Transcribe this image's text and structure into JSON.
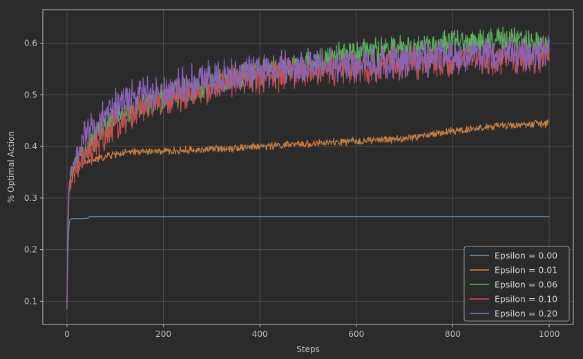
{
  "chart_data": {
    "type": "line",
    "title": "",
    "xlabel": "Steps",
    "ylabel": "% Optimal Action",
    "xlim": [
      -50,
      1050
    ],
    "ylim": [
      0.055,
      0.665
    ],
    "xticks": [
      0,
      200,
      400,
      600,
      800,
      1000
    ],
    "yticks": [
      0.1,
      0.2,
      0.3,
      0.4,
      0.5,
      0.6
    ],
    "xtick_labels": [
      "0",
      "200",
      "400",
      "600",
      "800",
      "1000"
    ],
    "ytick_labels": [
      "0.1",
      "0.2",
      "0.3",
      "0.4",
      "0.5",
      "0.6"
    ],
    "grid": true,
    "legend_position": "bottom-right",
    "series": [
      {
        "name": "Epsilon = 0.00",
        "color": "#5b89ad",
        "noise": 0.0,
        "x": [
          0,
          2,
          4,
          6,
          10,
          20,
          30,
          44,
          46,
          100,
          1000
        ],
        "y": [
          0.1,
          0.19,
          0.245,
          0.258,
          0.26,
          0.26,
          0.26,
          0.261,
          0.264,
          0.264,
          0.264
        ]
      },
      {
        "name": "Epsilon = 0.01",
        "color": "#c77a3a",
        "noise": 0.006,
        "x": [
          0,
          2,
          5,
          10,
          20,
          40,
          60,
          80,
          100,
          150,
          200,
          300,
          400,
          500,
          600,
          700,
          800,
          900,
          1000
        ],
        "y": [
          0.09,
          0.25,
          0.33,
          0.355,
          0.36,
          0.37,
          0.375,
          0.38,
          0.385,
          0.39,
          0.39,
          0.395,
          0.4,
          0.405,
          0.41,
          0.415,
          0.43,
          0.44,
          0.445
        ]
      },
      {
        "name": "Epsilon = 0.06",
        "color": "#5ab05a",
        "noise": 0.022,
        "x": [
          0,
          2,
          5,
          10,
          20,
          40,
          60,
          80,
          100,
          150,
          200,
          300,
          400,
          500,
          600,
          700,
          800,
          900,
          1000
        ],
        "y": [
          0.085,
          0.26,
          0.32,
          0.35,
          0.37,
          0.4,
          0.42,
          0.44,
          0.455,
          0.48,
          0.495,
          0.52,
          0.545,
          0.56,
          0.58,
          0.59,
          0.6,
          0.605,
          0.6
        ]
      },
      {
        "name": "Epsilon = 0.10",
        "color": "#c25050",
        "noise": 0.026,
        "x": [
          0,
          2,
          5,
          10,
          20,
          40,
          60,
          80,
          100,
          150,
          200,
          300,
          400,
          500,
          600,
          700,
          800,
          900,
          1000
        ],
        "y": [
          0.09,
          0.24,
          0.31,
          0.34,
          0.355,
          0.38,
          0.4,
          0.42,
          0.44,
          0.47,
          0.49,
          0.515,
          0.535,
          0.545,
          0.55,
          0.56,
          0.565,
          0.57,
          0.575
        ]
      },
      {
        "name": "Epsilon = 0.20",
        "color": "#8a64b5",
        "noise": 0.028,
        "x": [
          0,
          2,
          5,
          10,
          20,
          40,
          60,
          80,
          100,
          150,
          200,
          300,
          400,
          500,
          600,
          700,
          800,
          900,
          1000
        ],
        "y": [
          0.1,
          0.26,
          0.33,
          0.36,
          0.38,
          0.42,
          0.44,
          0.46,
          0.48,
          0.5,
          0.51,
          0.535,
          0.545,
          0.555,
          0.56,
          0.565,
          0.575,
          0.58,
          0.585
        ]
      }
    ]
  }
}
